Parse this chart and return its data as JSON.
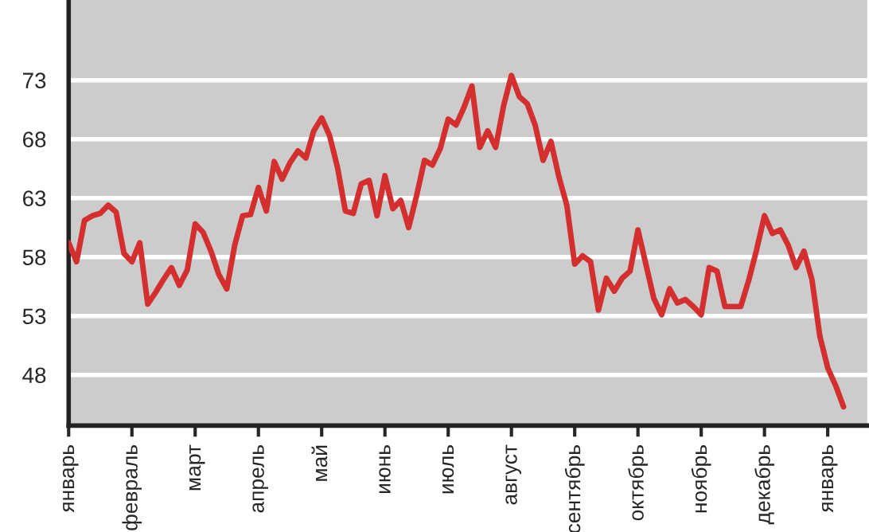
{
  "chart_data": {
    "type": "line",
    "categories": [
      "январь",
      null,
      null,
      null,
      null,
      null,
      null,
      null,
      "февраль",
      null,
      null,
      null,
      null,
      null,
      null,
      null,
      "март",
      null,
      null,
      null,
      null,
      null,
      null,
      null,
      "апрель",
      null,
      null,
      null,
      null,
      null,
      null,
      null,
      "май",
      null,
      null,
      null,
      null,
      null,
      null,
      null,
      "июнь",
      null,
      null,
      null,
      null,
      null,
      null,
      null,
      "июль",
      null,
      null,
      null,
      null,
      null,
      null,
      null,
      "август",
      null,
      null,
      null,
      null,
      null,
      null,
      null,
      "сентябрь",
      null,
      null,
      null,
      null,
      null,
      null,
      null,
      "октябрь",
      null,
      null,
      null,
      null,
      null,
      null,
      null,
      "ноябрь",
      null,
      null,
      null,
      null,
      null,
      null,
      null,
      "декабрь",
      null,
      null,
      null,
      null,
      null,
      null,
      null,
      "январь",
      null,
      null,
      null,
      null,
      null
    ],
    "series": [
      {
        "color": "#d42f2f",
        "values": [
          59.2,
          57.6,
          61.1,
          61.5,
          61.7,
          62.4,
          61.8,
          58.3,
          57.6,
          59.2,
          54.0,
          55.0,
          56.1,
          57.1,
          55.6,
          56.9,
          60.8,
          60.1,
          58.5,
          56.5,
          55.3,
          59.0,
          61.5,
          61.6,
          63.9,
          61.9,
          66.1,
          64.6,
          66.0,
          67.0,
          66.4,
          68.7,
          69.8,
          68.3,
          65.6,
          61.9,
          61.7,
          64.2,
          64.5,
          61.5,
          64.9,
          62.1,
          62.8,
          60.5,
          63.2,
          66.2,
          65.8,
          67.2,
          69.7,
          69.2,
          70.7,
          72.5,
          67.3,
          68.7,
          67.3,
          70.8,
          73.4,
          71.6,
          71.0,
          69.2,
          66.2,
          67.8,
          64.8,
          62.4,
          57.4,
          58.1,
          57.6,
          53.5,
          56.2,
          55.1,
          56.2,
          56.8,
          60.3,
          57.4,
          54.5,
          53.1,
          55.3,
          54.1,
          54.4,
          53.8,
          53.1,
          57.1,
          56.8,
          53.8,
          53.8,
          53.8,
          56.0,
          58.6,
          61.5,
          60.0,
          60.3,
          59.0,
          57.1,
          58.5,
          56.1,
          51.3,
          48.6,
          47.1,
          45.3,
          null,
          null,
          null
        ]
      }
    ],
    "ylim": [
      43.7,
      79.8
    ],
    "yticks": [
      48,
      53,
      58,
      63,
      68,
      73
    ],
    "grid": "y",
    "line_style": "solid",
    "marker": "none"
  }
}
